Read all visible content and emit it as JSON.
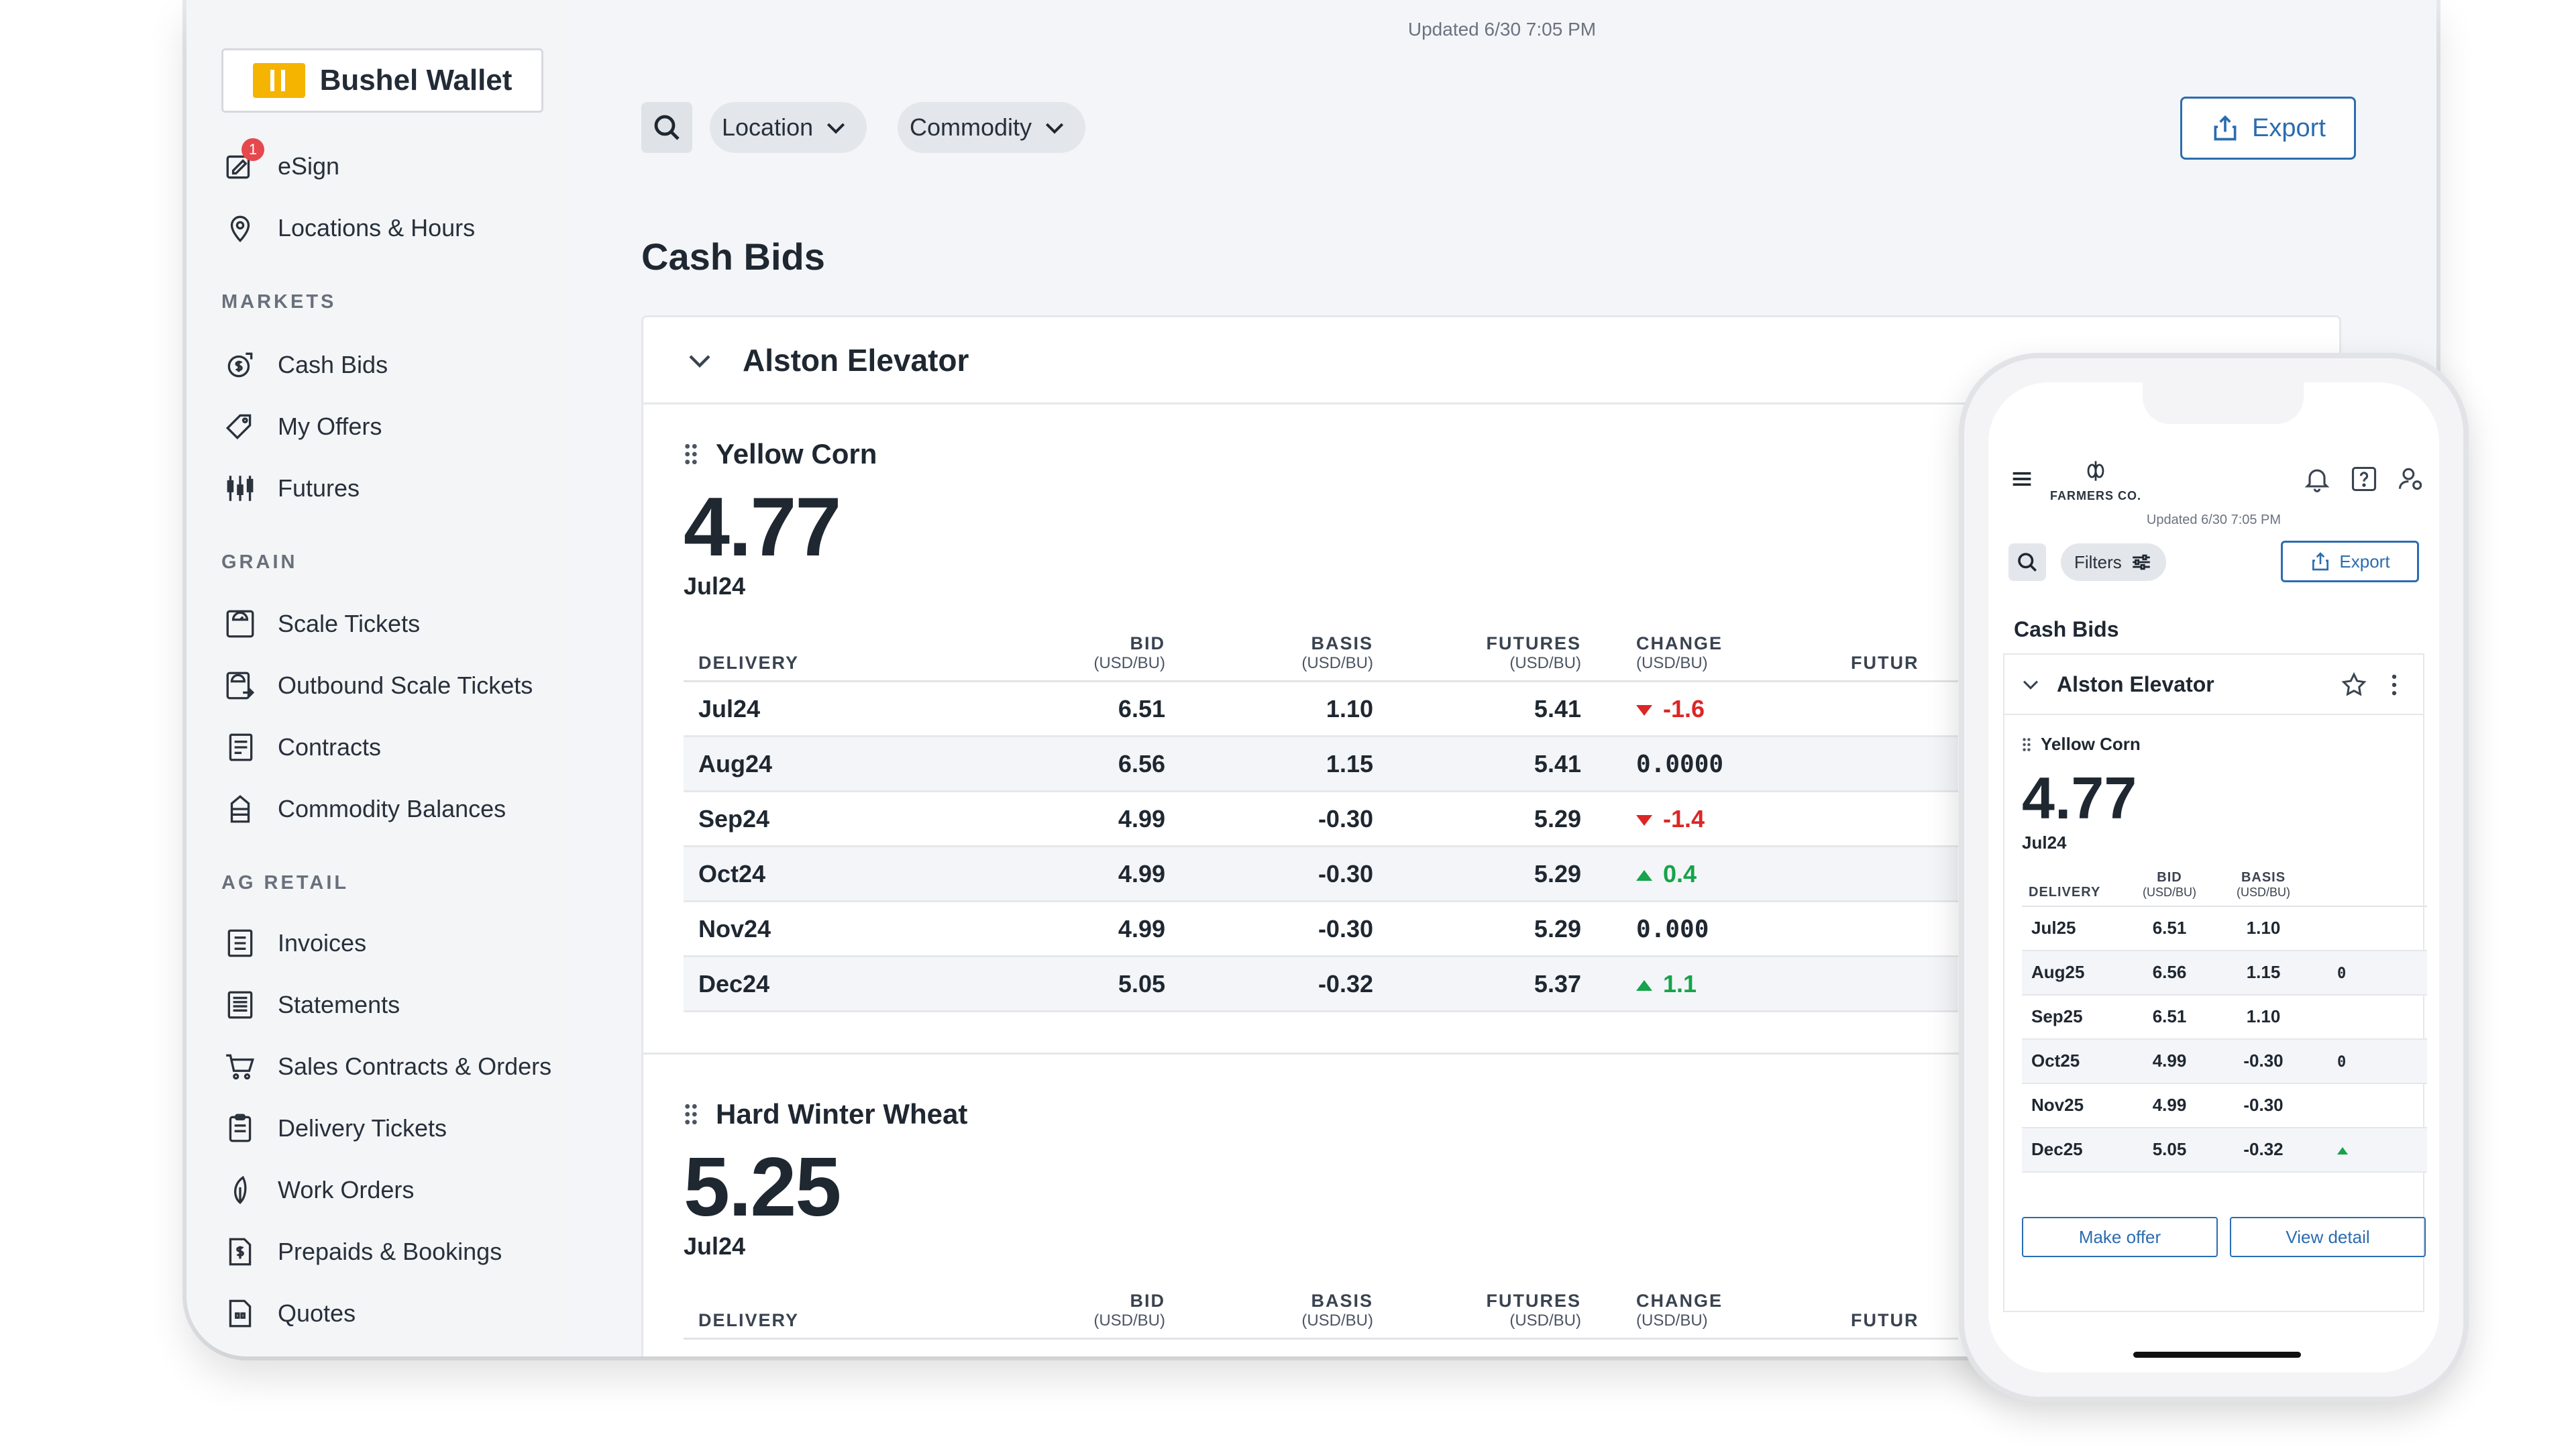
{
  "tablet": {
    "brand": "Bushel Wallet",
    "updated": "Updated 6/30 7:05 PM",
    "nav": {
      "esign": "eSign",
      "esign_badge": "1",
      "locations": "Locations & Hours",
      "markets_heading": "MARKETS",
      "cash_bids": "Cash Bids",
      "my_offers": "My Offers",
      "futures": "Futures",
      "grain_heading": "GRAIN",
      "scale_tickets": "Scale Tickets",
      "outbound_scale_tickets": "Outbound Scale Tickets",
      "contracts": "Contracts",
      "commodity_balances": "Commodity Balances",
      "ag_retail_heading": "AG RETAIL",
      "invoices": "Invoices",
      "statements": "Statements",
      "sales_contracts": "Sales Contracts & Orders",
      "delivery_tickets": "Delivery Tickets",
      "work_orders": "Work Orders",
      "prepaids": "Prepaids & Bookings",
      "quotes": "Quotes"
    },
    "filters": {
      "location": "Location",
      "commodity": "Commodity"
    },
    "export": "Export",
    "page_title": "Cash Bids",
    "elevator": "Alston Elevator",
    "columns": {
      "delivery": "DELIVERY",
      "bid": "BID",
      "basis": "BASIS",
      "futures": "FUTURES",
      "change": "CHANGE",
      "futur_cut": "FUTUR",
      "unit": "(USD/BU)"
    },
    "yellow_corn": {
      "name": "Yellow Corn",
      "price": "4.77",
      "month": "Jul24",
      "rows": [
        {
          "delivery": "Jul24",
          "bid": "6.51",
          "basis": "1.10",
          "futures": "5.41",
          "change": "-1.6",
          "dir": "down"
        },
        {
          "delivery": "Aug24",
          "bid": "6.56",
          "basis": "1.15",
          "futures": "5.41",
          "change": "0.0000",
          "dir": "zero"
        },
        {
          "delivery": "Sep24",
          "bid": "4.99",
          "basis": "-0.30",
          "futures": "5.29",
          "change": "-1.4",
          "dir": "down"
        },
        {
          "delivery": "Oct24",
          "bid": "4.99",
          "basis": "-0.30",
          "futures": "5.29",
          "change": "0.4",
          "dir": "up"
        },
        {
          "delivery": "Nov24",
          "bid": "4.99",
          "basis": "-0.30",
          "futures": "5.29",
          "change": "0.000",
          "dir": "zero"
        },
        {
          "delivery": "Dec24",
          "bid": "5.05",
          "basis": "-0.32",
          "futures": "5.37",
          "change": "1.1",
          "dir": "up"
        }
      ]
    },
    "hard_winter_wheat": {
      "name": "Hard Winter Wheat",
      "price": "5.25",
      "month": "Jul24"
    }
  },
  "phone": {
    "logo": "FARMERS CO.",
    "updated": "Updated 6/30 7:05 PM",
    "filters": "Filters",
    "export": "Export",
    "title": "Cash Bids",
    "elevator": "Alston Elevator",
    "commodity": "Yellow Corn",
    "price": "4.77",
    "month": "Jul24",
    "columns": {
      "delivery": "DELIVERY",
      "bid": "BID",
      "basis": "BASIS",
      "unit": "(USD/BU)"
    },
    "rows": [
      {
        "delivery": "Jul25",
        "bid": "6.51",
        "basis": "1.10",
        "extra": ""
      },
      {
        "delivery": "Aug25",
        "bid": "6.56",
        "basis": "1.15",
        "extra": "0"
      },
      {
        "delivery": "Sep25",
        "bid": "6.51",
        "basis": "1.10",
        "extra": ""
      },
      {
        "delivery": "Oct25",
        "bid": "4.99",
        "basis": "-0.30",
        "extra": "0"
      },
      {
        "delivery": "Nov25",
        "bid": "4.99",
        "basis": "-0.30",
        "extra": ""
      },
      {
        "delivery": "Dec25",
        "bid": "5.05",
        "basis": "-0.32",
        "extra": "up"
      }
    ],
    "make_offer": "Make offer",
    "view_detail": "View detail"
  }
}
